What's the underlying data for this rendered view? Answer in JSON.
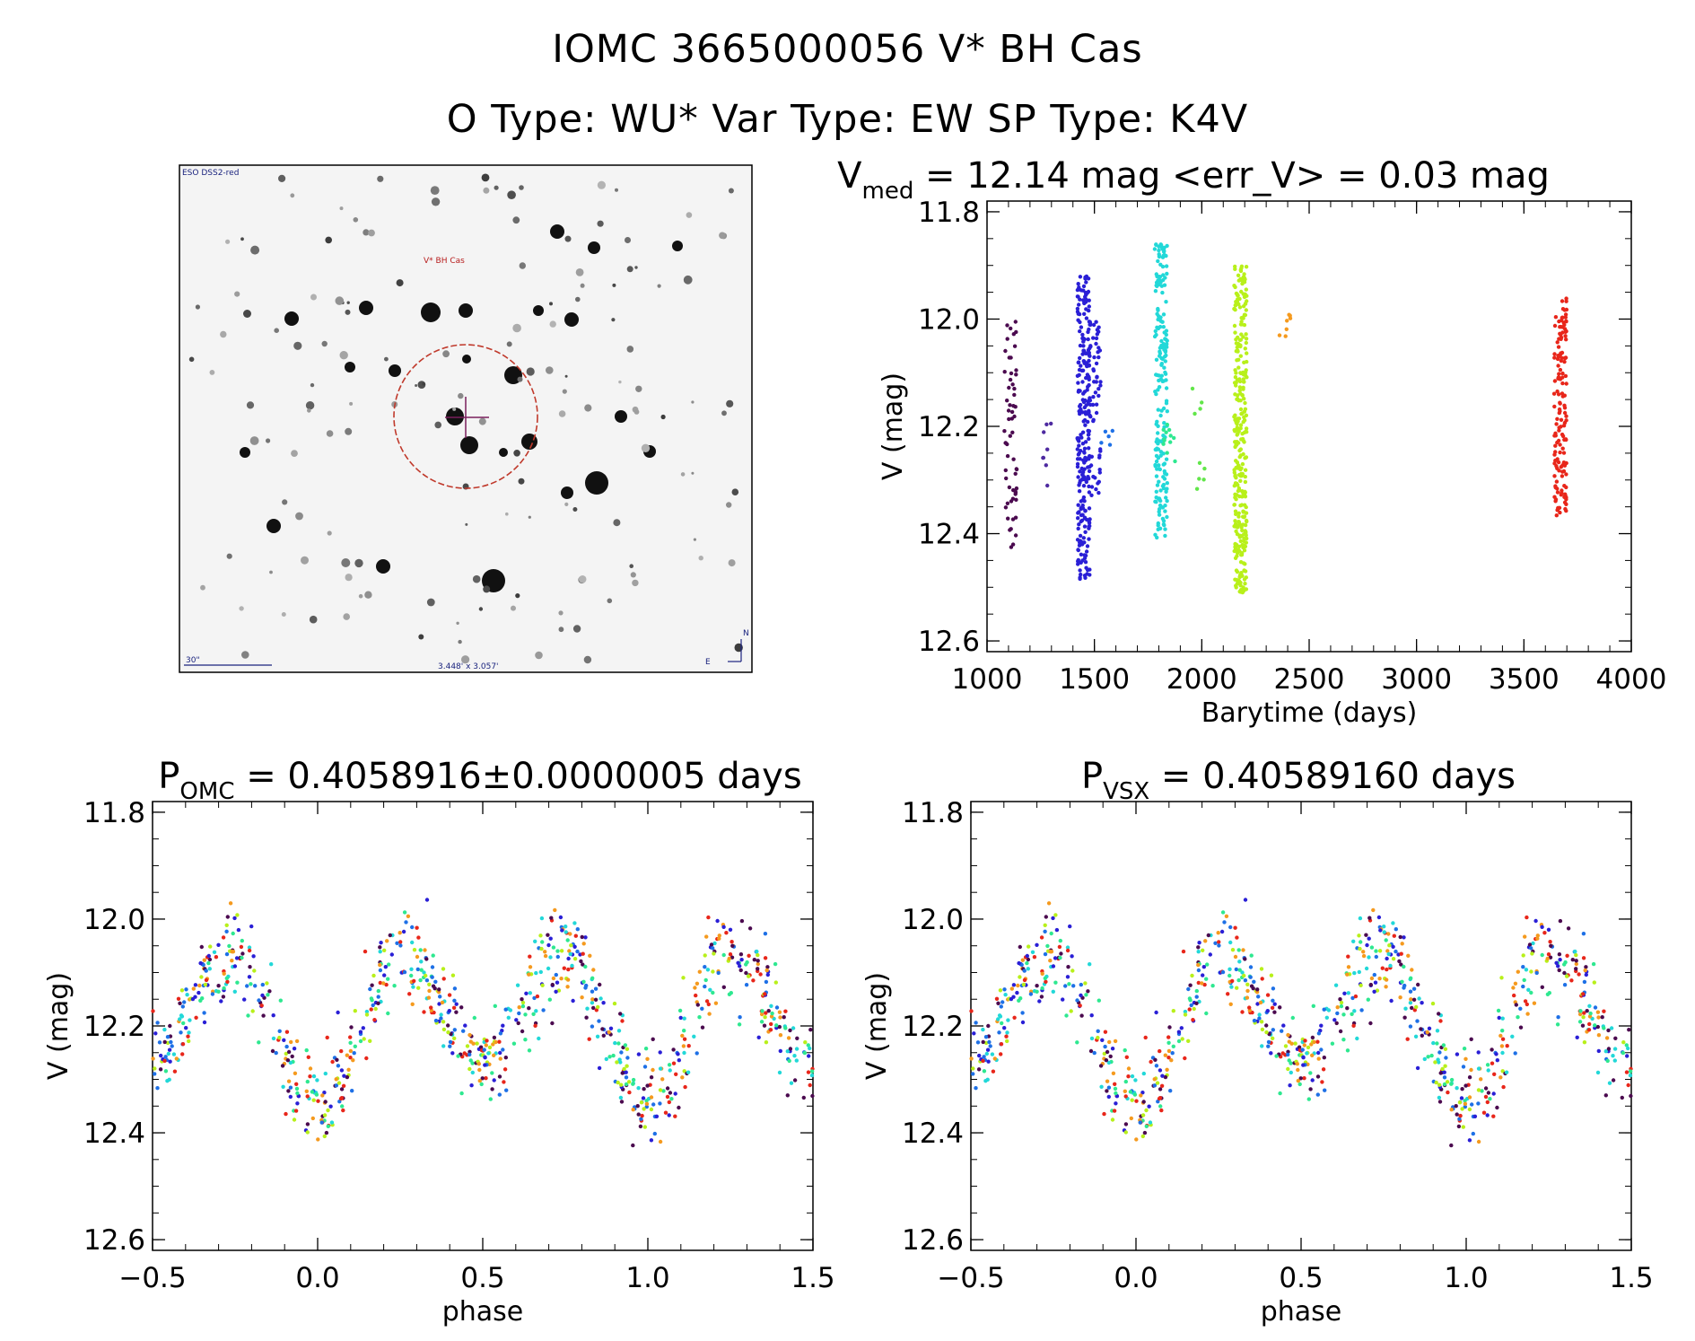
{
  "header": {
    "title_line1": "IOMC 3665000056   V* BH Cas",
    "title_line2": "O Type: WU*  Var Type: EW  SP Type: K4V"
  },
  "finding_chart": {
    "survey_label": "ESO DSS2-red",
    "target_label": "V* BH Cas",
    "scale_label": "30\"",
    "fov_label": "3.448' x 3.057'",
    "compass_north": "N",
    "compass_east": "E"
  },
  "colors": {
    "axis": "#000000",
    "circle": "#c0392b",
    "crosshair": "#7a1f5c",
    "label_blue": "#1a237e",
    "label_red": "#b71c1c"
  },
  "chart_data": [
    {
      "id": "lightcurve",
      "type": "scatter",
      "title_main": "V",
      "title_sub": "med",
      "title_rest": " = 12.14 mag <err_V> = 0.03 mag",
      "xlabel": "Barytime (days)",
      "ylabel": "V (mag)",
      "xlim": [
        1000,
        4000
      ],
      "ylim": [
        12.62,
        11.78
      ],
      "xticks": [
        1000,
        1500,
        2000,
        2500,
        3000,
        3500,
        4000
      ],
      "xtick_labels": [
        "1000",
        "1500",
        "2000",
        "2500",
        "3000",
        "3500",
        "4000"
      ],
      "yticks": [
        11.8,
        12.0,
        12.2,
        12.4,
        12.6
      ],
      "ytick_labels": [
        "11.8",
        "12.0",
        "12.2",
        "12.4",
        "12.6"
      ],
      "groups": [
        {
          "x": 1110,
          "ymin": 12.0,
          "ymax": 12.44,
          "n": 60,
          "color": "#4b0a4f"
        },
        {
          "x": 1275,
          "ymin": 12.17,
          "ymax": 12.32,
          "n": 8,
          "color": "#4e2aa0"
        },
        {
          "x": 1450,
          "ymin": 11.92,
          "ymax": 12.5,
          "n": 240,
          "color": "#2a1fd6"
        },
        {
          "x": 1500,
          "ymin": 12.0,
          "ymax": 12.33,
          "n": 70,
          "color": "#2a1fd6"
        },
        {
          "x": 1555,
          "ymin": 12.2,
          "ymax": 12.25,
          "n": 5,
          "color": "#1e70e6"
        },
        {
          "x": 1810,
          "ymin": 11.86,
          "ymax": 12.41,
          "n": 200,
          "color": "#22d8d8"
        },
        {
          "x": 1850,
          "ymin": 12.18,
          "ymax": 12.27,
          "n": 12,
          "color": "#2ee890"
        },
        {
          "x": 1985,
          "ymin": 12.11,
          "ymax": 12.33,
          "n": 9,
          "color": "#62e64a"
        },
        {
          "x": 2180,
          "ymin": 11.9,
          "ymax": 12.51,
          "n": 320,
          "color": "#b8f01a"
        },
        {
          "x": 2390,
          "ymin": 11.97,
          "ymax": 12.04,
          "n": 7,
          "color": "#f59a1e"
        },
        {
          "x": 3670,
          "ymin": 11.96,
          "ymax": 12.37,
          "n": 150,
          "color": "#e8261a"
        }
      ]
    },
    {
      "id": "phase_omc",
      "type": "scatter",
      "title_main": "P",
      "title_sub": "OMC",
      "title_rest": " = 0.4058916±0.0000005 days",
      "xlabel": "phase",
      "ylabel": "V (mag)",
      "xlim": [
        -0.5,
        1.5
      ],
      "ylim": [
        12.62,
        11.78
      ],
      "xticks": [
        -0.5,
        0.0,
        0.5,
        1.0,
        1.5
      ],
      "xtick_labels": [
        "−0.5",
        "0.0",
        "0.5",
        "1.0",
        "1.5"
      ],
      "yticks": [
        11.8,
        12.0,
        12.2,
        12.4,
        12.6
      ],
      "ytick_labels": [
        "11.8",
        "12.0",
        "12.2",
        "12.4",
        "12.6"
      ],
      "model": {
        "mean": 12.17,
        "amplitude": 0.12,
        "primary_min": 12.35,
        "secondary_min": 12.27,
        "scatter": 0.045
      },
      "series_colors": [
        "#4b0a4f",
        "#2a1fd6",
        "#1e70e6",
        "#22d8d8",
        "#2ee890",
        "#b8f01a",
        "#f59a1e",
        "#e8261a"
      ]
    },
    {
      "id": "phase_vsx",
      "type": "scatter",
      "title_main": "P",
      "title_sub": "VSX",
      "title_rest": " = 0.40589160 days",
      "xlabel": "phase",
      "ylabel": "V (mag)",
      "xlim": [
        -0.5,
        1.5
      ],
      "ylim": [
        12.62,
        11.78
      ],
      "xticks": [
        -0.5,
        0.0,
        0.5,
        1.0,
        1.5
      ],
      "xtick_labels": [
        "−0.5",
        "0.0",
        "0.5",
        "1.0",
        "1.5"
      ],
      "yticks": [
        11.8,
        12.0,
        12.2,
        12.4,
        12.6
      ],
      "ytick_labels": [
        "11.8",
        "12.0",
        "12.2",
        "12.4",
        "12.6"
      ],
      "model": {
        "mean": 12.17,
        "amplitude": 0.12,
        "primary_min": 12.35,
        "secondary_min": 12.27,
        "scatter": 0.045
      },
      "series_colors": [
        "#4b0a4f",
        "#2a1fd6",
        "#1e70e6",
        "#22d8d8",
        "#2ee890",
        "#b8f01a",
        "#f59a1e",
        "#e8261a"
      ]
    }
  ]
}
